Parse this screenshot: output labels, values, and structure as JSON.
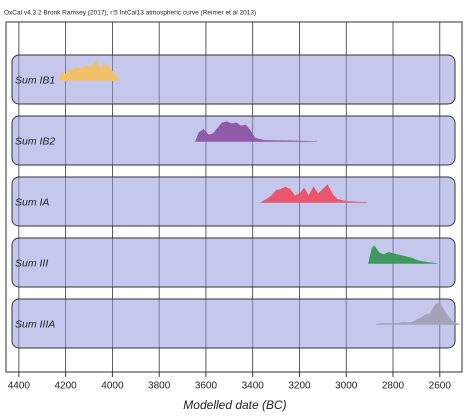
{
  "chart_data": {
    "type": "area",
    "title": "OxCal v4.3.2 Bronk Ramsey (2017); r:5 IntCal13 atmospheric curve (Reimer et al 2013)",
    "x_label": "Modelled date (BC)",
    "xlim": [
      4455,
      2505
    ],
    "xticks": [
      4400,
      4200,
      4000,
      3800,
      3600,
      3400,
      3200,
      3000,
      2800,
      2600
    ],
    "grid": true,
    "series": [
      {
        "name": "Sum IB1",
        "color": "#f3c06a",
        "x": [
          4230,
          4215,
          4200,
          4185,
          4170,
          4150,
          4130,
          4110,
          4090,
          4070,
          4050,
          4030,
          4010,
          3990,
          3975
        ],
        "values": [
          0,
          0.4,
          0.3,
          0.5,
          0.45,
          0.6,
          0.55,
          0.7,
          0.6,
          0.9,
          0.5,
          0.8,
          0.5,
          0.3,
          0
        ]
      },
      {
        "name": "Sum IB2",
        "color": "#8f5ba8",
        "x": [
          3645,
          3630,
          3610,
          3590,
          3570,
          3550,
          3530,
          3510,
          3490,
          3470,
          3450,
          3430,
          3410,
          3390,
          3350,
          3250,
          3125
        ],
        "values": [
          0,
          0.4,
          0.55,
          0.3,
          0.35,
          0.6,
          0.85,
          0.9,
          0.8,
          0.85,
          0.7,
          0.75,
          0.5,
          0.15,
          0.05,
          0.03,
          0
        ]
      },
      {
        "name": "Sum IA",
        "color": "#e8576c",
        "x": [
          3365,
          3340,
          3320,
          3300,
          3280,
          3260,
          3240,
          3220,
          3200,
          3180,
          3160,
          3140,
          3120,
          3100,
          3080,
          3060,
          3040,
          3000,
          2910
        ],
        "values": [
          0,
          0.15,
          0.3,
          0.55,
          0.6,
          0.7,
          0.6,
          0.3,
          0.4,
          0.65,
          0.3,
          0.7,
          0.4,
          0.6,
          0.8,
          0.4,
          0.15,
          0.05,
          0
        ]
      },
      {
        "name": "Sum III",
        "color": "#3d9a5c",
        "x": [
          2905,
          2890,
          2880,
          2860,
          2840,
          2820,
          2800,
          2780,
          2760,
          2740,
          2720,
          2700,
          2680,
          2650,
          2610
        ],
        "values": [
          0,
          0.7,
          0.8,
          0.5,
          0.4,
          0.5,
          0.45,
          0.4,
          0.35,
          0.3,
          0.25,
          0.15,
          0.1,
          0.05,
          0
        ]
      },
      {
        "name": "Sum IIIA",
        "color": "#a3a2b8",
        "x": [
          2870,
          2850,
          2800,
          2780,
          2760,
          2740,
          2720,
          2700,
          2680,
          2660,
          2640,
          2620,
          2600,
          2580,
          2560,
          2540,
          2515
        ],
        "values": [
          0,
          0.05,
          0.05,
          0.05,
          0.1,
          0.08,
          0.1,
          0.2,
          0.3,
          0.45,
          0.5,
          0.9,
          1.0,
          0.6,
          0.3,
          0.1,
          0
        ]
      }
    ]
  }
}
